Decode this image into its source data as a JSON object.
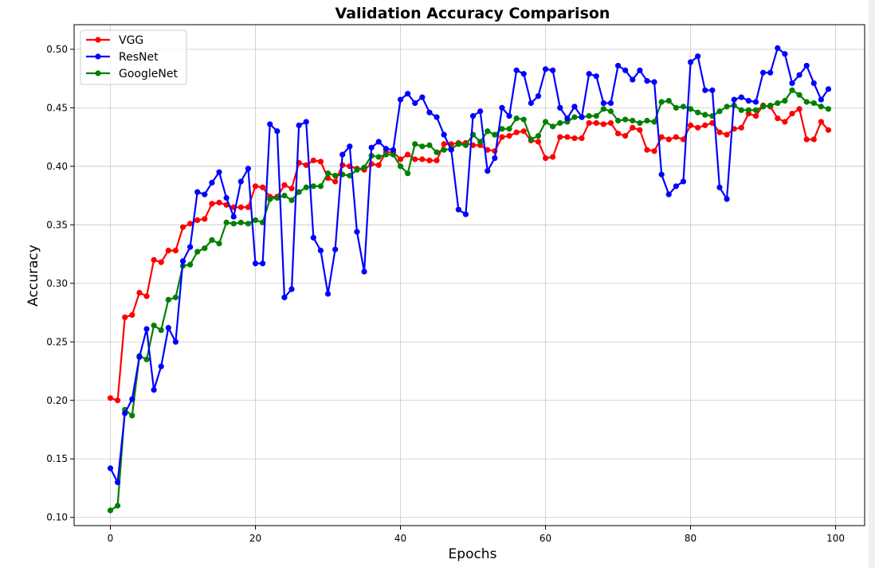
{
  "chart_data": {
    "type": "line",
    "title": "Validation Accuracy Comparison",
    "xlabel": "Epochs",
    "ylabel": "Accuracy",
    "xlim": [
      -5,
      104
    ],
    "ylim": [
      0.093,
      0.521
    ],
    "xticks": [
      0,
      20,
      40,
      60,
      80,
      100
    ],
    "yticks": [
      0.1,
      0.15,
      0.2,
      0.25,
      0.3,
      0.35,
      0.4,
      0.45,
      0.5
    ],
    "xtick_labels": [
      "0",
      "20",
      "40",
      "60",
      "80",
      "100"
    ],
    "ytick_labels": [
      "0.10",
      "0.15",
      "0.20",
      "0.25",
      "0.30",
      "0.35",
      "0.40",
      "0.45",
      "0.50"
    ],
    "grid": true,
    "legend_position": "top-left",
    "series": [
      {
        "name": "VGG",
        "color": "#ff0000",
        "values": [
          0.202,
          0.2,
          0.271,
          0.273,
          0.292,
          0.289,
          0.32,
          0.318,
          0.328,
          0.328,
          0.348,
          0.351,
          0.354,
          0.355,
          0.368,
          0.369,
          0.367,
          0.365,
          0.365,
          0.365,
          0.383,
          0.382,
          0.374,
          0.374,
          0.384,
          0.381,
          0.403,
          0.401,
          0.405,
          0.404,
          0.39,
          0.387,
          0.401,
          0.4,
          0.398,
          0.397,
          0.402,
          0.401,
          0.412,
          0.412,
          0.406,
          0.41,
          0.406,
          0.406,
          0.405,
          0.405,
          0.419,
          0.419,
          0.42,
          0.42,
          0.418,
          0.418,
          0.414,
          0.413,
          0.425,
          0.426,
          0.429,
          0.43,
          0.422,
          0.421,
          0.407,
          0.408,
          0.425,
          0.425,
          0.424,
          0.424,
          0.437,
          0.437,
          0.436,
          0.437,
          0.428,
          0.426,
          0.433,
          0.431,
          0.414,
          0.413,
          0.425,
          0.423,
          0.425,
          0.423,
          0.435,
          0.433,
          0.435,
          0.437,
          0.429,
          0.427,
          0.432,
          0.433,
          0.445,
          0.443,
          0.452,
          0.451,
          0.441,
          0.438,
          0.445,
          0.449,
          0.423,
          0.423,
          0.438,
          0.431
        ]
      },
      {
        "name": "ResNet",
        "color": "#0000ff",
        "values": [
          0.142,
          0.13,
          0.189,
          0.201,
          0.237,
          0.261,
          0.209,
          0.229,
          0.262,
          0.25,
          0.319,
          0.331,
          0.378,
          0.376,
          0.386,
          0.395,
          0.373,
          0.357,
          0.387,
          0.398,
          0.317,
          0.317,
          0.436,
          0.43,
          0.288,
          0.295,
          0.435,
          0.438,
          0.339,
          0.328,
          0.291,
          0.329,
          0.41,
          0.417,
          0.344,
          0.31,
          0.416,
          0.421,
          0.415,
          0.414,
          0.457,
          0.462,
          0.454,
          0.459,
          0.446,
          0.442,
          0.427,
          0.414,
          0.363,
          0.359,
          0.443,
          0.447,
          0.396,
          0.407,
          0.45,
          0.443,
          0.482,
          0.479,
          0.454,
          0.46,
          0.483,
          0.482,
          0.45,
          0.441,
          0.451,
          0.442,
          0.479,
          0.477,
          0.454,
          0.454,
          0.486,
          0.482,
          0.474,
          0.482,
          0.473,
          0.472,
          0.393,
          0.376,
          0.383,
          0.387,
          0.489,
          0.494,
          0.465,
          0.465,
          0.382,
          0.372,
          0.457,
          0.459,
          0.456,
          0.455,
          0.48,
          0.48,
          0.501,
          0.496,
          0.471,
          0.478,
          0.486,
          0.471,
          0.457,
          0.466
        ]
      },
      {
        "name": "GoogleNet",
        "color": "#008000",
        "values": [
          0.106,
          0.11,
          0.192,
          0.187,
          0.238,
          0.235,
          0.264,
          0.26,
          0.286,
          0.288,
          0.315,
          0.316,
          0.327,
          0.33,
          0.337,
          0.334,
          0.352,
          0.351,
          0.352,
          0.351,
          0.354,
          0.352,
          0.372,
          0.373,
          0.375,
          0.371,
          0.378,
          0.382,
          0.383,
          0.383,
          0.394,
          0.392,
          0.393,
          0.392,
          0.397,
          0.399,
          0.409,
          0.408,
          0.41,
          0.41,
          0.4,
          0.394,
          0.419,
          0.417,
          0.418,
          0.412,
          0.414,
          0.415,
          0.419,
          0.418,
          0.427,
          0.421,
          0.43,
          0.427,
          0.432,
          0.432,
          0.441,
          0.44,
          0.423,
          0.426,
          0.438,
          0.434,
          0.437,
          0.438,
          0.442,
          0.442,
          0.443,
          0.443,
          0.449,
          0.447,
          0.439,
          0.44,
          0.439,
          0.437,
          0.439,
          0.438,
          0.455,
          0.456,
          0.45,
          0.451,
          0.449,
          0.446,
          0.444,
          0.443,
          0.447,
          0.451,
          0.452,
          0.448,
          0.448,
          0.448,
          0.451,
          0.452,
          0.454,
          0.456,
          0.465,
          0.461,
          0.455,
          0.454,
          0.451,
          0.449
        ]
      }
    ]
  }
}
